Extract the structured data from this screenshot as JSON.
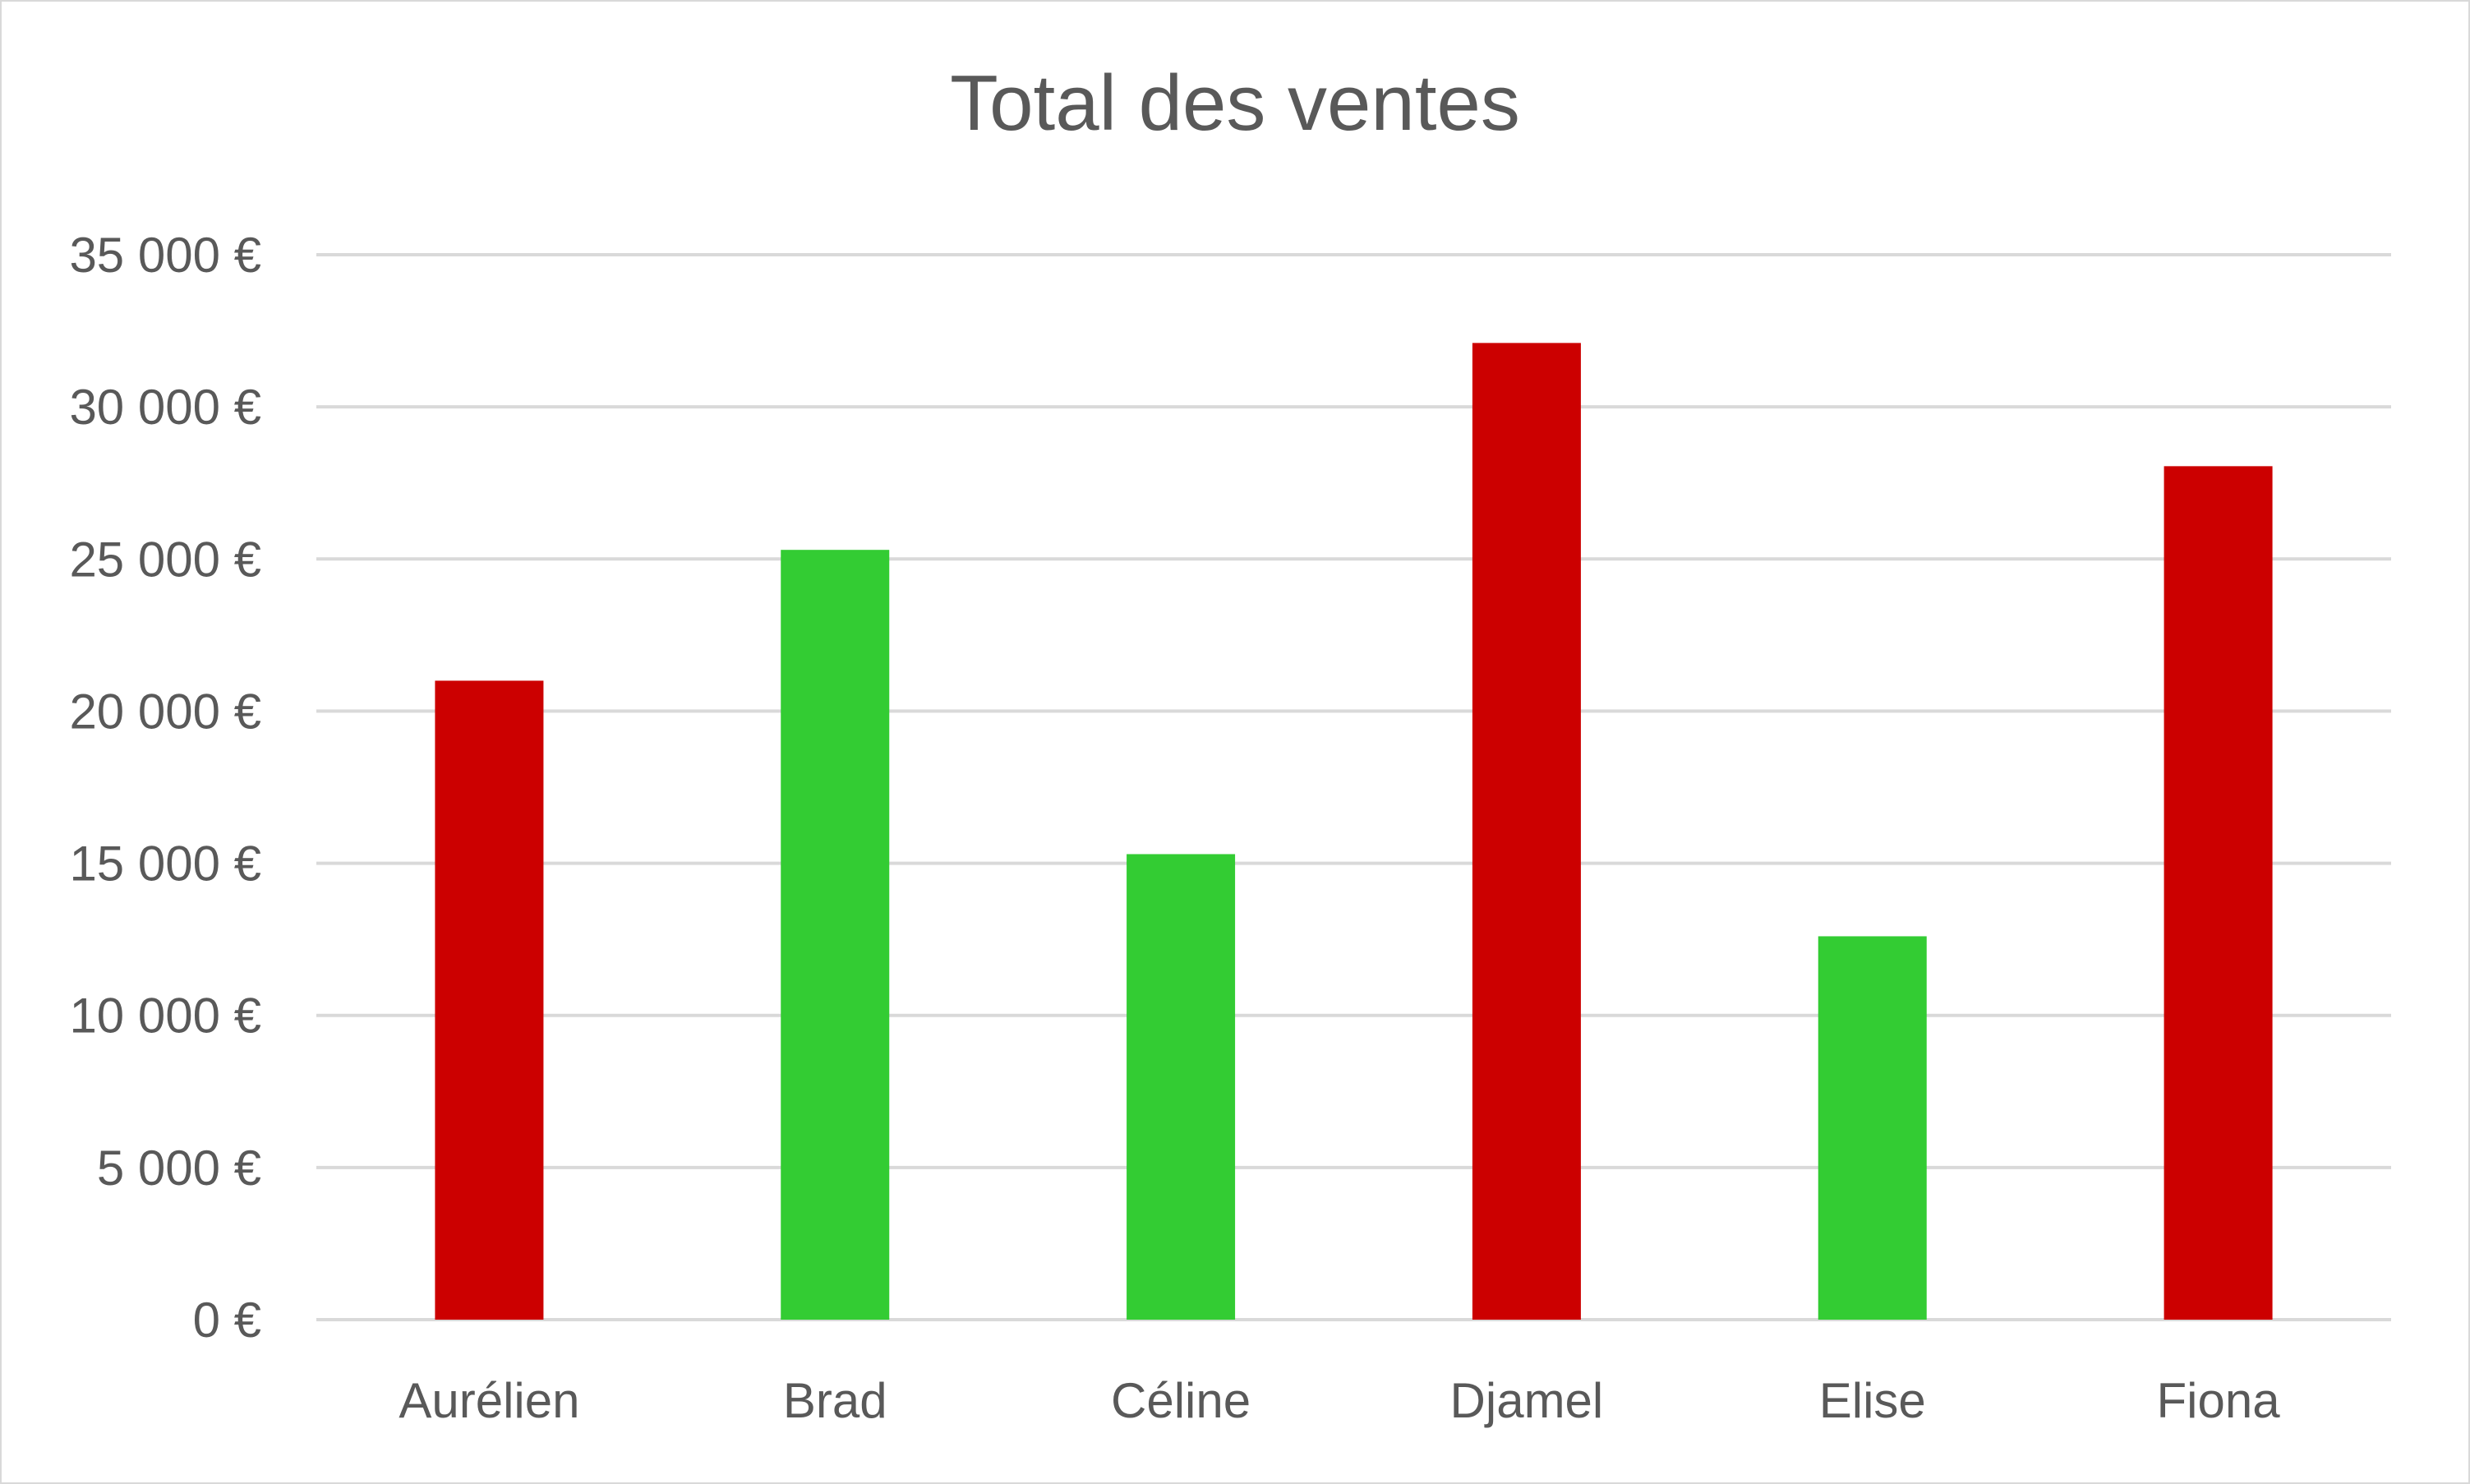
{
  "chart_data": {
    "type": "bar",
    "title": "Total des ventes",
    "xlabel": "",
    "ylabel": "",
    "categories": [
      "Aurélien",
      "Brad",
      "Céline",
      "Djamel",
      "Elise",
      "Fiona"
    ],
    "values": [
      21000,
      25300,
      15300,
      32100,
      12600,
      28050
    ],
    "bar_colors": [
      "#cc0000",
      "#33cc33",
      "#33cc33",
      "#cc0000",
      "#33cc33",
      "#cc0000"
    ],
    "ylim": [
      0,
      35000
    ],
    "yticks": [
      0,
      5000,
      10000,
      15000,
      20000,
      25000,
      30000,
      35000
    ],
    "ytick_labels": [
      "0 €",
      "5 000 €",
      "10 000 €",
      "15 000 €",
      "20 000 €",
      "25 000 €",
      "30 000 €",
      "35 000 €"
    ],
    "grid": true,
    "gridline_color": "#d9d9d9",
    "legend": false
  }
}
